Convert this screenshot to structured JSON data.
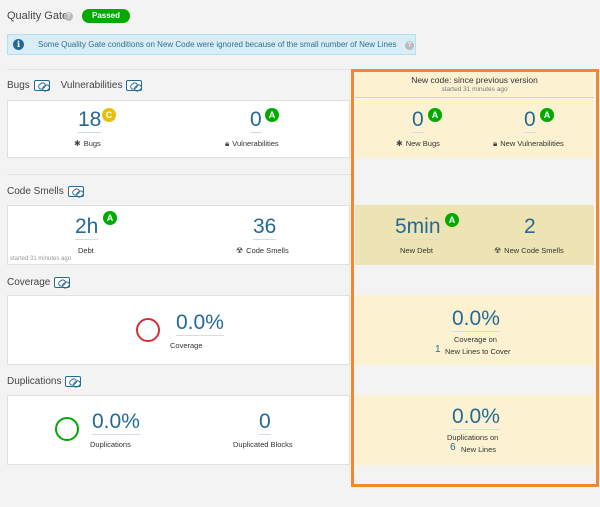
{
  "quality_gate": {
    "title": "Quality Gate",
    "status": "Passed"
  },
  "banner": {
    "text": "Some Quality Gate conditions on New Code were ignored because of the small number of New Lines"
  },
  "new_code": {
    "title": "New code: since previous version",
    "started": "started 31 minutes ago"
  },
  "bugs_vulns": {
    "bugs_title": "Bugs",
    "vulns_title": "Vulnerabilities",
    "bugs_value": "18",
    "bugs_rating": "C",
    "bugs_label": "Bugs",
    "vulns_value": "0",
    "vulns_rating": "A",
    "vulns_label": "Vulnerabilities",
    "new_bugs_value": "0",
    "new_bugs_rating": "A",
    "new_bugs_label": "New Bugs",
    "new_vulns_value": "0",
    "new_vulns_rating": "A",
    "new_vulns_label": "New Vulnerabilities"
  },
  "code_smells": {
    "title": "Code Smells",
    "debt_value": "2h",
    "debt_rating": "A",
    "debt_label": "Debt",
    "started": "started 31 minutes ago",
    "smells_value": "36",
    "smells_label": "Code Smells",
    "new_debt_value": "5min",
    "new_debt_rating": "A",
    "new_debt_label": "New Debt",
    "new_smells_value": "2",
    "new_smells_label": "New Code Smells"
  },
  "coverage": {
    "title": "Coverage",
    "value": "0.0%",
    "label": "Coverage",
    "new_value": "0.0%",
    "new_label": "Coverage on",
    "new_lines_count": "1",
    "new_lines_label": "New Lines to Cover",
    "ring_color": "#d02f3a"
  },
  "duplications": {
    "title": "Duplications",
    "value": "0.0%",
    "label": "Duplications",
    "blocks_value": "0",
    "blocks_label": "Duplicated Blocks",
    "new_value": "0.0%",
    "new_label": "Duplications on",
    "new_lines_count": "6",
    "new_lines_label": "New Lines",
    "ring_color": "#00aa00"
  },
  "colors": {
    "accent": "#236a97",
    "highlight": "#f4872c",
    "new_code_bg": "#fcf2d2",
    "rating_a": "#00aa00",
    "rating_c": "#eabe06"
  }
}
